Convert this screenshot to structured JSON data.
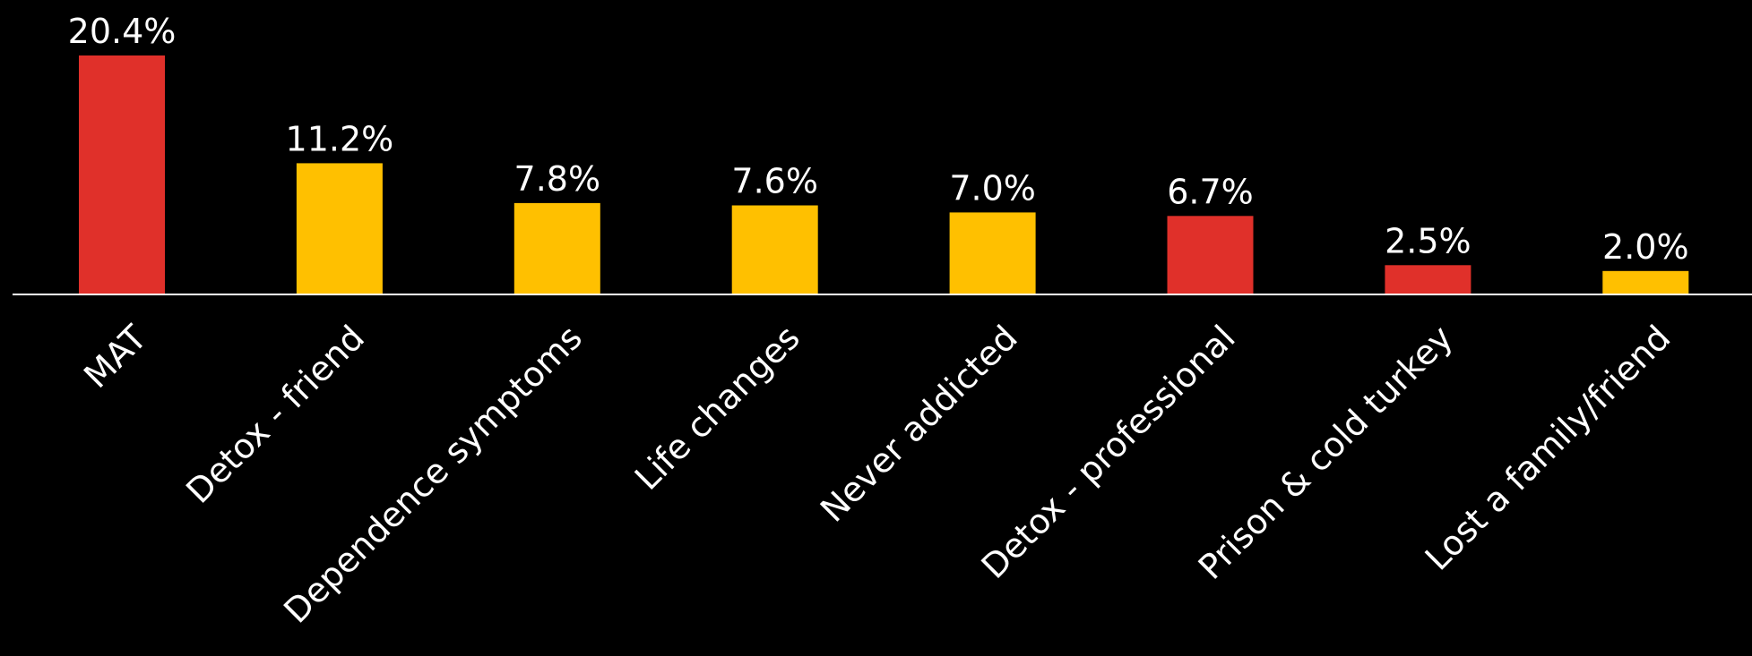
{
  "chart_data": {
    "type": "bar",
    "categories": [
      "MAT",
      "Detox - friend",
      "Dependence symptoms",
      "Life changes",
      "Never addicted",
      "Detox - professional",
      "Prison & cold turkey",
      "Lost a family/friend"
    ],
    "values": [
      20.4,
      11.2,
      7.8,
      7.6,
      7.0,
      6.7,
      2.5,
      2.0
    ],
    "value_labels": [
      "20.4%",
      "11.2%",
      "7.8%",
      "7.6%",
      "7.0%",
      "6.7%",
      "2.5%",
      "2.0%"
    ],
    "bar_colors": [
      "#e0302a",
      "#ffc000",
      "#ffc000",
      "#ffc000",
      "#ffc000",
      "#e0302a",
      "#e0302a",
      "#ffc000"
    ],
    "title": "",
    "xlabel": "",
    "ylabel": "",
    "ylim": [
      0,
      21
    ],
    "grid": false,
    "legend": "none"
  },
  "colors": {
    "background": "#000000",
    "text": "#ffffff",
    "axis": "#ffffff",
    "red": "#e0302a",
    "yellow": "#ffc000"
  }
}
